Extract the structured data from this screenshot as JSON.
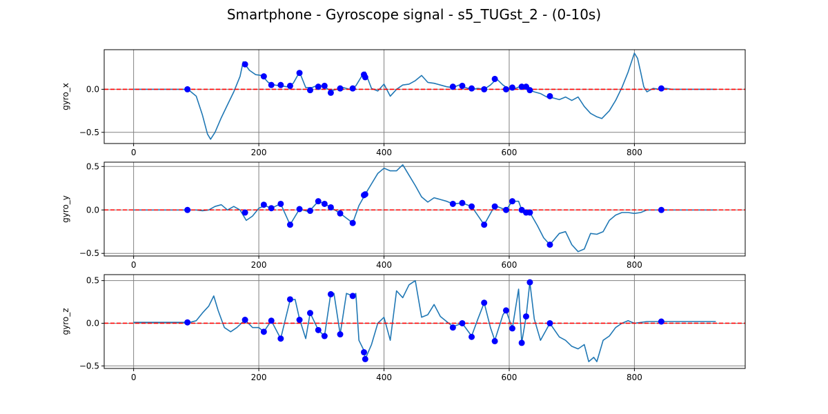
{
  "title": "Smartphone - Gyroscope signal - s5_TUGst_2 - (0-10s)",
  "colors": {
    "line": "#1f77b4",
    "marker": "#0000ff",
    "zero_line": "#ff0000",
    "grid": "#808080"
  },
  "chart_data": [
    {
      "type": "line",
      "ylabel": "gyro_x",
      "xlim": [
        -47,
        977
      ],
      "ylim": [
        -0.63,
        0.46
      ],
      "xticks": [
        0,
        200,
        400,
        600,
        800
      ],
      "yticks": [
        -0.5,
        0.0
      ],
      "ytick_labels": [
        "−0.5",
        "0.0"
      ],
      "xtick_labels": [
        "0",
        "200",
        "400",
        "600",
        "800"
      ],
      "grid": true,
      "zero_line": 0,
      "series": [
        {
          "kind": "line",
          "x": [
            0,
            20,
            40,
            60,
            80,
            90,
            100,
            110,
            118,
            123,
            130,
            140,
            150,
            160,
            170,
            175,
            185,
            195,
            205,
            215,
            225,
            235,
            245,
            255,
            265,
            275,
            285,
            295,
            305,
            315,
            325,
            335,
            345,
            355,
            365,
            370,
            380,
            390,
            400,
            410,
            420,
            430,
            440,
            450,
            460,
            470,
            480,
            490,
            500,
            510,
            520,
            530,
            540,
            550,
            560,
            570,
            580,
            590,
            600,
            610,
            620,
            630,
            640,
            650,
            660,
            670,
            680,
            690,
            700,
            710,
            720,
            730,
            740,
            748,
            760,
            770,
            780,
            790,
            800,
            805,
            810,
            815,
            820,
            830,
            840,
            850,
            860,
            880,
            900,
            930
          ],
          "y": [
            0.0,
            0.0,
            0.0,
            0.0,
            0.0,
            -0.02,
            -0.08,
            -0.3,
            -0.52,
            -0.58,
            -0.5,
            -0.33,
            -0.18,
            -0.03,
            0.15,
            0.32,
            0.22,
            0.17,
            0.16,
            0.08,
            0.05,
            0.04,
            0.03,
            0.07,
            0.2,
            0.02,
            0.02,
            0.05,
            0.03,
            -0.02,
            0.0,
            0.02,
            0.0,
            0.04,
            0.16,
            0.2,
            0.01,
            -0.02,
            0.06,
            -0.08,
            0.0,
            0.05,
            0.06,
            0.1,
            0.16,
            0.08,
            0.07,
            0.05,
            0.03,
            0.02,
            0.05,
            0.02,
            0.0,
            0.01,
            0.0,
            0.05,
            0.12,
            0.05,
            0.0,
            0.01,
            0.04,
            0.0,
            -0.03,
            -0.05,
            -0.09,
            -0.1,
            -0.12,
            -0.09,
            -0.13,
            -0.09,
            -0.2,
            -0.28,
            -0.32,
            -0.34,
            -0.25,
            -0.13,
            0.02,
            0.2,
            0.42,
            0.36,
            0.2,
            0.03,
            -0.03,
            0.01,
            0.0,
            0.01,
            0.0,
            0.0,
            0.0,
            0.0
          ]
        },
        {
          "kind": "markers",
          "x": [
            86,
            178,
            208,
            220,
            235,
            250,
            265,
            282,
            295,
            305,
            315,
            330,
            350,
            368,
            370,
            510,
            525,
            540,
            560,
            577,
            595,
            605,
            620,
            627,
            633,
            665,
            843
          ],
          "y": [
            0.0,
            0.29,
            0.15,
            0.05,
            0.05,
            0.04,
            0.19,
            -0.01,
            0.03,
            0.04,
            -0.04,
            0.01,
            0.01,
            0.17,
            0.14,
            0.03,
            0.04,
            0.01,
            0.0,
            0.12,
            0.0,
            0.02,
            0.03,
            0.03,
            -0.01,
            -0.08,
            0.01
          ]
        }
      ]
    },
    {
      "type": "line",
      "ylabel": "gyro_y",
      "xlim": [
        -47,
        977
      ],
      "ylim": [
        -0.53,
        0.55
      ],
      "xticks": [
        0,
        200,
        400,
        600,
        800
      ],
      "yticks": [
        -0.5,
        0.0,
        0.5
      ],
      "ytick_labels": [
        "−0.5",
        "0.0",
        "0.5"
      ],
      "xtick_labels": [
        "0",
        "200",
        "400",
        "600",
        "800"
      ],
      "grid": true,
      "zero_line": 0,
      "series": [
        {
          "kind": "line",
          "x": [
            0,
            40,
            80,
            100,
            110,
            120,
            130,
            140,
            150,
            160,
            170,
            180,
            190,
            200,
            210,
            220,
            235,
            250,
            265,
            280,
            295,
            305,
            315,
            330,
            350,
            360,
            370,
            380,
            390,
            400,
            410,
            420,
            430,
            440,
            450,
            460,
            470,
            480,
            490,
            500,
            510,
            525,
            540,
            560,
            577,
            595,
            605,
            615,
            620,
            627,
            633,
            645,
            655,
            665,
            680,
            690,
            700,
            710,
            720,
            730,
            740,
            750,
            760,
            770,
            780,
            790,
            800,
            810,
            820,
            840,
            880,
            930
          ],
          "y": [
            0.0,
            0.0,
            0.0,
            0.0,
            -0.01,
            0.0,
            0.04,
            0.06,
            0.0,
            0.04,
            0.0,
            -0.12,
            -0.07,
            0.02,
            0.05,
            0.02,
            0.07,
            -0.17,
            0.01,
            -0.02,
            0.1,
            0.07,
            0.03,
            -0.04,
            -0.15,
            0.05,
            0.18,
            0.3,
            0.42,
            0.48,
            0.45,
            0.45,
            0.52,
            0.4,
            0.28,
            0.15,
            0.09,
            0.14,
            0.12,
            0.1,
            0.07,
            0.08,
            0.04,
            -0.17,
            0.05,
            0.0,
            0.1,
            0.1,
            0.0,
            -0.03,
            -0.03,
            -0.18,
            -0.32,
            -0.4,
            -0.27,
            -0.25,
            -0.4,
            -0.48,
            -0.45,
            -0.27,
            -0.28,
            -0.25,
            -0.12,
            -0.06,
            -0.03,
            -0.03,
            -0.04,
            -0.03,
            0.0,
            0.0,
            0.0,
            0.0
          ]
        },
        {
          "kind": "markers",
          "x": [
            86,
            178,
            208,
            220,
            235,
            250,
            265,
            282,
            295,
            305,
            315,
            330,
            350,
            368,
            370,
            510,
            525,
            540,
            560,
            577,
            595,
            605,
            620,
            627,
            633,
            665,
            843
          ],
          "y": [
            0.0,
            -0.03,
            0.06,
            0.02,
            0.07,
            -0.17,
            0.01,
            -0.01,
            0.1,
            0.07,
            0.03,
            -0.04,
            -0.15,
            0.17,
            0.18,
            0.07,
            0.08,
            0.04,
            -0.17,
            0.04,
            0.0,
            0.1,
            0.0,
            -0.03,
            -0.03,
            -0.4,
            0.0
          ]
        }
      ]
    },
    {
      "type": "line",
      "ylabel": "gyro_z",
      "xlim": [
        -47,
        977
      ],
      "ylim": [
        -0.53,
        0.57
      ],
      "xticks": [
        0,
        200,
        400,
        600,
        800
      ],
      "yticks": [
        -0.5,
        0.0,
        0.5
      ],
      "ytick_labels": [
        "−0.5",
        "0.0",
        "0.5"
      ],
      "xtick_labels": [
        "0",
        "200",
        "400",
        "600",
        "800"
      ],
      "grid": true,
      "zero_line": 0,
      "series": [
        {
          "kind": "line",
          "x": [
            0,
            40,
            80,
            90,
            100,
            110,
            120,
            128,
            135,
            145,
            155,
            165,
            178,
            190,
            200,
            208,
            220,
            235,
            250,
            258,
            265,
            275,
            282,
            290,
            295,
            305,
            315,
            320,
            330,
            340,
            350,
            355,
            360,
            368,
            370,
            380,
            390,
            400,
            410,
            420,
            430,
            440,
            450,
            460,
            470,
            480,
            490,
            500,
            510,
            525,
            540,
            550,
            560,
            570,
            577,
            590,
            595,
            605,
            615,
            620,
            627,
            633,
            640,
            650,
            665,
            680,
            690,
            700,
            710,
            720,
            727,
            735,
            740,
            750,
            760,
            770,
            780,
            790,
            800,
            820,
            843,
            880,
            930
          ],
          "y": [
            0.01,
            0.01,
            0.01,
            0.01,
            0.03,
            0.12,
            0.2,
            0.32,
            0.15,
            -0.05,
            -0.1,
            -0.05,
            0.04,
            -0.05,
            -0.05,
            -0.1,
            0.03,
            -0.18,
            0.27,
            0.28,
            0.05,
            -0.18,
            0.12,
            0.0,
            -0.08,
            -0.15,
            0.35,
            0.35,
            -0.13,
            0.35,
            0.32,
            0.35,
            -0.2,
            -0.32,
            -0.42,
            -0.25,
            0.0,
            0.07,
            -0.2,
            0.38,
            0.3,
            0.45,
            0.5,
            0.07,
            0.1,
            0.22,
            0.08,
            0.02,
            -0.04,
            0.0,
            -0.15,
            0.05,
            0.24,
            -0.05,
            -0.2,
            0.1,
            0.15,
            -0.06,
            0.4,
            -0.23,
            0.08,
            0.48,
            0.05,
            -0.2,
            0.0,
            -0.16,
            -0.2,
            -0.27,
            -0.3,
            -0.25,
            -0.45,
            -0.4,
            -0.45,
            -0.2,
            -0.15,
            -0.05,
            0.0,
            0.03,
            0.0,
            0.02,
            0.02,
            0.02,
            0.02
          ]
        },
        {
          "kind": "markers",
          "x": [
            86,
            178,
            208,
            220,
            235,
            250,
            265,
            282,
            295,
            305,
            315,
            330,
            350,
            368,
            370,
            510,
            525,
            540,
            560,
            577,
            595,
            605,
            620,
            627,
            633,
            665,
            843
          ],
          "y": [
            0.01,
            0.04,
            -0.1,
            0.03,
            -0.18,
            0.28,
            0.04,
            0.12,
            -0.08,
            -0.15,
            0.34,
            -0.13,
            0.32,
            -0.34,
            -0.42,
            -0.05,
            0.0,
            -0.16,
            0.24,
            -0.21,
            0.15,
            -0.06,
            -0.23,
            0.08,
            0.48,
            0.0,
            0.02
          ]
        }
      ]
    }
  ]
}
